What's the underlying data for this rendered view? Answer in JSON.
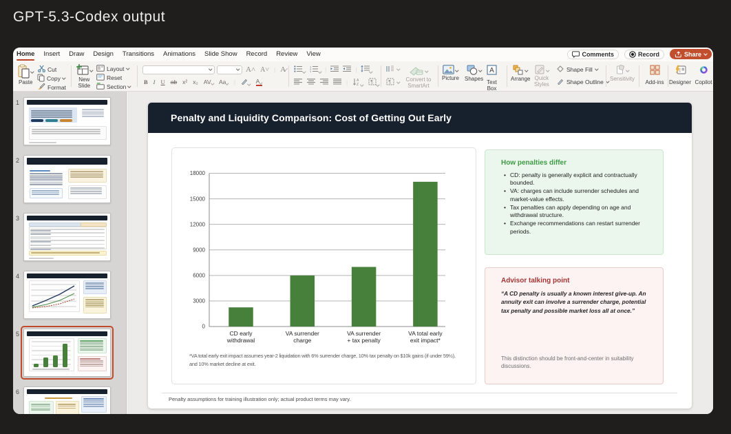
{
  "page": {
    "heading": "GPT-5.3-Codex output"
  },
  "app": {
    "tabs": [
      {
        "label": "Home",
        "active": true
      },
      {
        "label": "Insert",
        "active": false
      },
      {
        "label": "Draw",
        "active": false
      },
      {
        "label": "Design",
        "active": false
      },
      {
        "label": "Transitions",
        "active": false
      },
      {
        "label": "Animations",
        "active": false
      },
      {
        "label": "Slide Show",
        "active": false
      },
      {
        "label": "Record",
        "active": false
      },
      {
        "label": "Review",
        "active": false
      },
      {
        "label": "View",
        "active": false
      }
    ],
    "top_actions": {
      "comments": "Comments",
      "record": "Record",
      "share": "Share"
    },
    "ribbon": {
      "paste": "Paste",
      "cut": "Cut",
      "copy": "Copy",
      "format": "Format",
      "new_slide": "New Slide",
      "layout": "Layout",
      "reset": "Reset",
      "section": "Section",
      "bold": "B",
      "italic": "I",
      "underline": "U",
      "strike": "ab",
      "sup": "x²",
      "sub": "x₂",
      "char_spacing": "AV",
      "change_case": "Aa",
      "grow_font": "A^",
      "shrink_font": "A˅",
      "clear_format": "A🖉",
      "convert_smartart": "Convert to SmartArt",
      "picture": "Picture",
      "shapes": "Shapes",
      "text_box": "Text Box",
      "arrange": "Arrange",
      "quick_styles": "Quick Styles",
      "shape_fill": "Shape Fill",
      "shape_outline": "Shape Outline",
      "sensitivity": "Sensitivity",
      "add_ins": "Add-ins",
      "designer": "Designer",
      "copilot": "Copilot"
    },
    "accent_colors": {
      "tab_underline": "#BC4327",
      "share_button": "#C14E2D",
      "selection_ring": "#C04A2B"
    }
  },
  "slides_panel": [
    {
      "num": "1",
      "kind": "title-buttons"
    },
    {
      "num": "2",
      "kind": "two-col"
    },
    {
      "num": "3",
      "kind": "table"
    },
    {
      "num": "4",
      "kind": "line-chart"
    },
    {
      "num": "5",
      "kind": "bar-chart",
      "selected": true
    },
    {
      "num": "6",
      "kind": "three-col"
    }
  ],
  "slide": {
    "title": "Penalty and Liquidity Comparison: Cost of Getting Out Early",
    "chart_footnote": "*VA total early exit impact assumes year-2 liquidation with 6% surrender charge, 10% tax penalty on $10k gains (if under 59½), and 10% market decline at exit.",
    "green_panel": {
      "title": "How penalties differ",
      "bullets": [
        "CD: penalty is generally explicit and contractually bounded.",
        "VA: charges can include surrender schedules and market-value effects.",
        "Tax penalties can apply depending on age and withdrawal structure.",
        "Exchange recommendations can restart surrender periods."
      ]
    },
    "pink_panel": {
      "title": "Advisor talking point",
      "quote": "“A CD penalty is usually a known interest give-up. An annuity exit can involve a surrender charge, potential tax penalty and possible market loss all at once.”",
      "note": "This distinction should be front-and-center in suitability discussions."
    },
    "footer": "Penalty assumptions for training illustration only; actual product terms may vary."
  },
  "chart_data": {
    "type": "bar",
    "categories": [
      "CD early\nwithdrawal",
      "VA surrender\ncharge",
      "VA surrender\n+ tax penalty",
      "VA total early\nexit impact*"
    ],
    "values": [
      2250,
      6000,
      7000,
      17000
    ],
    "title": "",
    "xlabel": "",
    "ylabel": "",
    "ylim": [
      0,
      18000
    ],
    "yticks": [
      0,
      3000,
      6000,
      9000,
      12000,
      15000,
      18000
    ],
    "grid": true,
    "bar_color": "#47803B",
    "legend": null
  }
}
